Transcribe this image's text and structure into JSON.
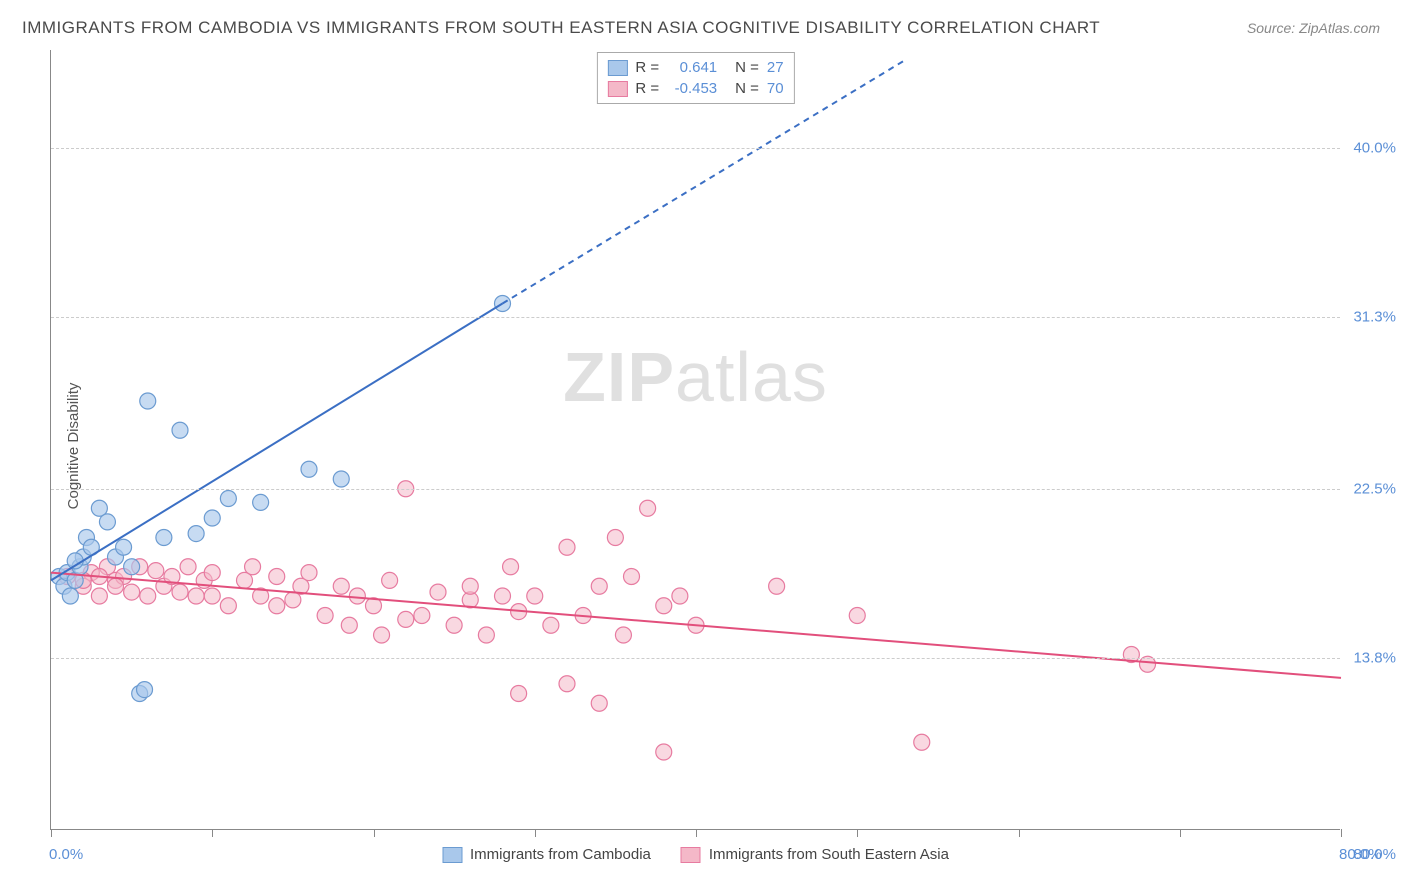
{
  "title": "IMMIGRANTS FROM CAMBODIA VS IMMIGRANTS FROM SOUTH EASTERN ASIA COGNITIVE DISABILITY CORRELATION CHART",
  "source": "Source: ZipAtlas.com",
  "y_axis_label": "Cognitive Disability",
  "watermark_bold": "ZIP",
  "watermark_light": "atlas",
  "chart": {
    "type": "scatter",
    "xlim": [
      0,
      80
    ],
    "ylim": [
      5,
      45
    ],
    "x_ticks": [
      0,
      10,
      20,
      30,
      40,
      50,
      60,
      70,
      80
    ],
    "x_tick_labels": {
      "0": "0.0%",
      "80": "80.0%"
    },
    "y_ticks": [
      13.8,
      22.5,
      31.3,
      40.0
    ],
    "y_tick_labels": [
      "13.8%",
      "22.5%",
      "31.3%",
      "40.0%"
    ],
    "grid_color": "#cccccc",
    "background_color": "#ffffff",
    "axis_color": "#888888"
  },
  "series": [
    {
      "name": "Immigrants from Cambodia",
      "color_fill": "#a9c8eb",
      "color_stroke": "#6b9bd1",
      "marker_radius": 8,
      "marker_opacity": 0.65,
      "r_value": "0.641",
      "n_value": "27",
      "trend": {
        "x1": 0,
        "y1": 17.8,
        "x2": 28,
        "y2": 32.0,
        "x2_dash": 53,
        "y2_dash": 44.5,
        "color": "#3b6fc4",
        "width": 2
      },
      "points": [
        [
          0.5,
          18.0
        ],
        [
          0.8,
          17.5
        ],
        [
          1.0,
          18.2
        ],
        [
          1.2,
          17.0
        ],
        [
          1.5,
          17.8
        ],
        [
          1.8,
          18.5
        ],
        [
          2.0,
          19.0
        ],
        [
          2.2,
          20.0
        ],
        [
          2.5,
          19.5
        ],
        [
          3.0,
          21.5
        ],
        [
          3.5,
          20.8
        ],
        [
          4.0,
          19.0
        ],
        [
          4.5,
          19.5
        ],
        [
          5.0,
          18.5
        ],
        [
          6.0,
          27.0
        ],
        [
          7.0,
          20.0
        ],
        [
          8.0,
          25.5
        ],
        [
          9.0,
          20.2
        ],
        [
          10.0,
          21.0
        ],
        [
          11.0,
          22.0
        ],
        [
          13.0,
          21.8
        ],
        [
          16.0,
          23.5
        ],
        [
          18.0,
          23.0
        ],
        [
          5.5,
          12.0
        ],
        [
          5.8,
          12.2
        ],
        [
          1.5,
          18.8
        ],
        [
          28.0,
          32.0
        ]
      ]
    },
    {
      "name": "Immigrants from South Eastern Asia",
      "color_fill": "#f4b8c8",
      "color_stroke": "#e77ba0",
      "marker_radius": 8,
      "marker_opacity": 0.55,
      "r_value": "-0.453",
      "n_value": "70",
      "trend": {
        "x1": 0,
        "y1": 18.2,
        "x2": 80,
        "y2": 12.8,
        "color": "#e24f7c",
        "width": 2
      },
      "points": [
        [
          1,
          18.0
        ],
        [
          2,
          17.5
        ],
        [
          2.5,
          18.2
        ],
        [
          3,
          17.0
        ],
        [
          3.5,
          18.5
        ],
        [
          4,
          17.8
        ],
        [
          4.5,
          18.0
        ],
        [
          5,
          17.2
        ],
        [
          5.5,
          18.5
        ],
        [
          6,
          17.0
        ],
        [
          6.5,
          18.3
        ],
        [
          7,
          17.5
        ],
        [
          7.5,
          18.0
        ],
        [
          8,
          17.2
        ],
        [
          8.5,
          18.5
        ],
        [
          9,
          17.0
        ],
        [
          9.5,
          17.8
        ],
        [
          10,
          18.2
        ],
        [
          11,
          16.5
        ],
        [
          12,
          17.8
        ],
        [
          12.5,
          18.5
        ],
        [
          13,
          17.0
        ],
        [
          14,
          18.0
        ],
        [
          15,
          16.8
        ],
        [
          15.5,
          17.5
        ],
        [
          16,
          18.2
        ],
        [
          17,
          16.0
        ],
        [
          18,
          17.5
        ],
        [
          18.5,
          15.5
        ],
        [
          19,
          17.0
        ],
        [
          20,
          16.5
        ],
        [
          20.5,
          15.0
        ],
        [
          21,
          17.8
        ],
        [
          22,
          22.5
        ],
        [
          23,
          16.0
        ],
        [
          24,
          17.2
        ],
        [
          25,
          15.5
        ],
        [
          26,
          16.8
        ],
        [
          27,
          15.0
        ],
        [
          28,
          17.0
        ],
        [
          28.5,
          18.5
        ],
        [
          29,
          16.2
        ],
        [
          30,
          17.0
        ],
        [
          31,
          15.5
        ],
        [
          32,
          19.5
        ],
        [
          33,
          16.0
        ],
        [
          34,
          17.5
        ],
        [
          35,
          20.0
        ],
        [
          35.5,
          15.0
        ],
        [
          36,
          18.0
        ],
        [
          37,
          21.5
        ],
        [
          38,
          16.5
        ],
        [
          39,
          17.0
        ],
        [
          40,
          15.5
        ],
        [
          29,
          12.0
        ],
        [
          32,
          12.5
        ],
        [
          34,
          11.5
        ],
        [
          38,
          9.0
        ],
        [
          45,
          17.5
        ],
        [
          50,
          16.0
        ],
        [
          54,
          9.5
        ],
        [
          67,
          14.0
        ],
        [
          68,
          13.5
        ],
        [
          2,
          17.8
        ],
        [
          3,
          18.0
        ],
        [
          4,
          17.5
        ],
        [
          10,
          17.0
        ],
        [
          14,
          16.5
        ],
        [
          22,
          15.8
        ],
        [
          26,
          17.5
        ]
      ]
    }
  ],
  "legend_top": {
    "r_label": "R =",
    "n_label": "N ="
  }
}
